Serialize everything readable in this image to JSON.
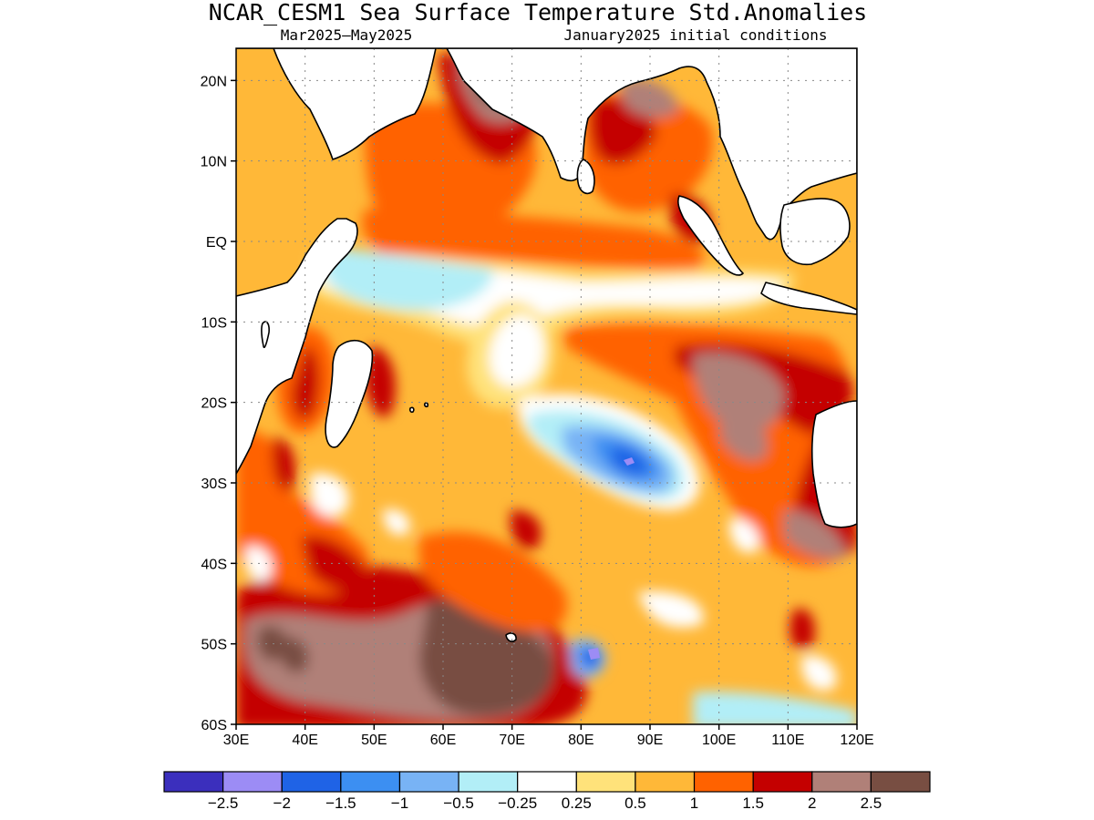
{
  "title": "NCAR_CESM1 Sea Surface Temperature Std.Anomalies",
  "subtitle_left": "Mar2025–May2025",
  "subtitle_right": "January2025 initial conditions",
  "map": {
    "lon_range": [
      30,
      120
    ],
    "lat_range": [
      -60,
      24
    ],
    "lat_ticks": [
      {
        "value": 20,
        "label": "20N"
      },
      {
        "value": 10,
        "label": "10N"
      },
      {
        "value": 0,
        "label": "EQ"
      },
      {
        "value": -10,
        "label": "10S"
      },
      {
        "value": -20,
        "label": "20S"
      },
      {
        "value": -30,
        "label": "30S"
      },
      {
        "value": -40,
        "label": "40S"
      },
      {
        "value": -50,
        "label": "50S"
      },
      {
        "value": -60,
        "label": "60S"
      }
    ],
    "lon_ticks": [
      {
        "value": 30,
        "label": "30E"
      },
      {
        "value": 40,
        "label": "40E"
      },
      {
        "value": 50,
        "label": "50E"
      },
      {
        "value": 60,
        "label": "60E"
      },
      {
        "value": 70,
        "label": "70E"
      },
      {
        "value": 80,
        "label": "80E"
      },
      {
        "value": 90,
        "label": "90E"
      },
      {
        "value": 100,
        "label": "100E"
      },
      {
        "value": 110,
        "label": "110E"
      },
      {
        "value": 120,
        "label": "120E"
      }
    ],
    "grid": true
  },
  "colorbar": {
    "colors": [
      "#3b2fbd",
      "#9c8cf5",
      "#1f63e6",
      "#3c8ff2",
      "#78b3f5",
      "#b2eef7",
      "#ffffff",
      "#ffe27a",
      "#ffb838",
      "#ff6200",
      "#c40000",
      "#b08078",
      "#784e42"
    ],
    "labels": [
      "−2.5",
      "−2",
      "−1.5",
      "−1",
      "−0.5",
      "−0.25",
      "0.25",
      "0.5",
      "1",
      "1.5",
      "2",
      "2.5"
    ]
  }
}
